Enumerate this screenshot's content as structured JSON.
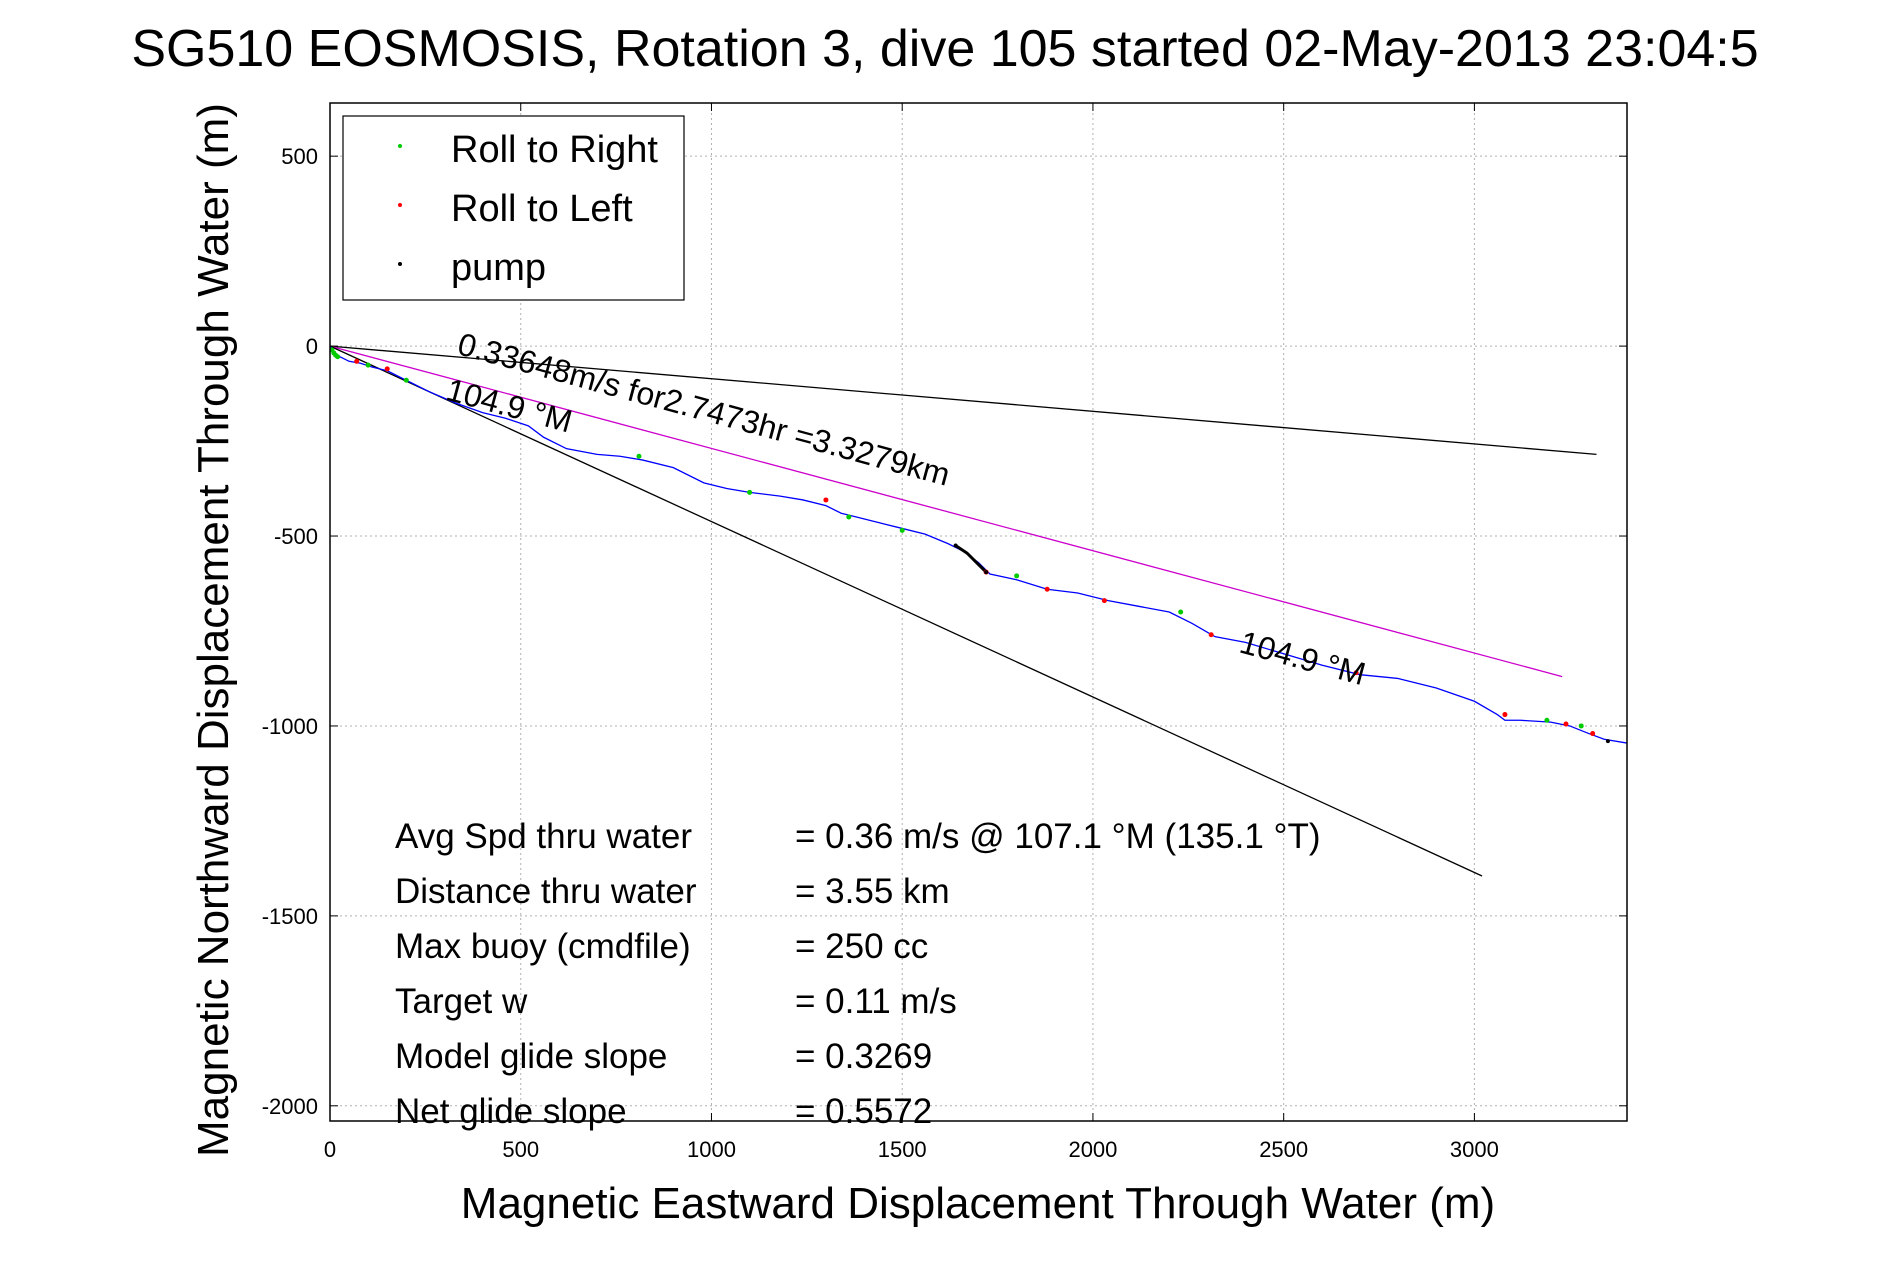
{
  "chart_data": {
    "type": "scatter",
    "title": "SG510 EOSMOSIS, Rotation 3, dive 105 started 02-May-2013 23:04:5",
    "xlabel": "Magnetic Eastward Displacement Through Water (m)",
    "ylabel": "Magnetic Northward Displacement Through Water (m)",
    "xlim": [
      0,
      3400
    ],
    "ylim": [
      -2040,
      640
    ],
    "x_ticks": [
      0,
      500,
      1000,
      1500,
      2000,
      2500,
      3000
    ],
    "y_ticks": [
      500,
      0,
      -500,
      -1000,
      -1500,
      -2000
    ],
    "x_tick_labels": [
      "0",
      "500",
      "1000",
      "1500",
      "2000",
      "2500",
      "3000"
    ],
    "y_tick_labels": [
      "500",
      "0",
      "-500",
      "-1000",
      "-1500",
      "-2000"
    ],
    "grid": true,
    "legend_position": "top-left",
    "legend": [
      {
        "label": "Roll to Right",
        "color": "#00cc00"
      },
      {
        "label": "Roll to Left",
        "color": "#ff0000"
      },
      {
        "label": "pump",
        "color": "#000000"
      }
    ],
    "track": {
      "color": "#0000ff",
      "x": [
        0,
        20,
        50,
        80,
        110,
        150,
        200,
        260,
        330,
        400,
        460,
        520,
        560,
        620,
        700,
        760,
        820,
        900,
        980,
        1040,
        1100,
        1180,
        1240,
        1300,
        1340,
        1380,
        1440,
        1500,
        1560,
        1620,
        1660,
        1700,
        1730,
        1800,
        1880,
        1960,
        2040,
        2120,
        2200,
        2260,
        2320,
        2400,
        2500,
        2600,
        2700,
        2800,
        2900,
        3000,
        3060,
        3080,
        3120,
        3200,
        3250,
        3300,
        3340,
        3400
      ],
      "y": [
        0,
        -25,
        -40,
        -45,
        -55,
        -65,
        -90,
        -120,
        -150,
        -175,
        -190,
        -210,
        -240,
        -270,
        -285,
        -290,
        -300,
        -320,
        -360,
        -375,
        -385,
        -395,
        -405,
        -420,
        -440,
        -450,
        -465,
        -480,
        -495,
        -520,
        -540,
        -570,
        -600,
        -615,
        -640,
        -650,
        -670,
        -685,
        -700,
        -730,
        -765,
        -780,
        -810,
        -840,
        -865,
        -875,
        -900,
        -935,
        -970,
        -985,
        -985,
        -990,
        -1000,
        -1020,
        -1035,
        -1045
      ]
    },
    "roll_right_points": {
      "color": "#00cc00",
      "x": [
        5,
        10,
        15,
        20,
        100,
        200,
        810,
        1100,
        1360,
        1500,
        1800,
        2230,
        3190,
        3280
      ],
      "y": [
        -10,
        -18,
        -24,
        -28,
        -50,
        -90,
        -290,
        -385,
        -450,
        -485,
        -605,
        -700,
        -985,
        -1000
      ]
    },
    "roll_left_points": {
      "color": "#ff0000",
      "x": [
        70,
        150,
        1300,
        1720,
        1880,
        2030,
        2310,
        2690,
        3080,
        3240,
        3310
      ],
      "y": [
        -40,
        -60,
        -405,
        -595,
        -640,
        -670,
        -760,
        -860,
        -970,
        -995,
        -1020
      ]
    },
    "pump_segment": {
      "color": "#000000",
      "x": [
        1640,
        1670,
        1700,
        1720
      ],
      "y": [
        -525,
        -545,
        -575,
        -595
      ]
    },
    "pump_points": {
      "color": "#000000",
      "x": [
        1640,
        1720,
        3350
      ],
      "y": [
        -525,
        -595,
        -1040
      ]
    },
    "reference_lines": [
      {
        "name": "black-top",
        "color": "#000000",
        "x": [
          0,
          3320
        ],
        "y": [
          0,
          -285
        ]
      },
      {
        "name": "magenta",
        "color": "#cc00cc",
        "x": [
          0,
          3230
        ],
        "y": [
          0,
          -870
        ]
      },
      {
        "name": "black-bottom",
        "color": "#000000",
        "x": [
          0,
          3020
        ],
        "y": [
          0,
          -1395
        ]
      }
    ],
    "annotations": [
      {
        "text": "0.33648m/s for2.7473hr =3.3279km",
        "x": 330,
        "y": -20,
        "rotation": 15.1
      },
      {
        "text": "104.9 °M",
        "x": 300,
        "y": -140,
        "rotation": 15.1
      },
      {
        "text": "104.9 °M",
        "x": 2380,
        "y": -805,
        "rotation": 15.1
      }
    ],
    "stats": [
      {
        "label": "Avg Spd thru water",
        "value": "=  0.36 m/s @ 107.1 °M (135.1 °T)"
      },
      {
        "label": "Distance thru water",
        "value": "=  3.55 km"
      },
      {
        "label": "Max buoy (cmdfile)",
        "value": "= 250 cc"
      },
      {
        "label": "Target w",
        "value": "= 0.11 m/s"
      },
      {
        "label": "Model glide slope",
        "value": "= 0.3269"
      },
      {
        "label": "Net glide slope",
        "value": "= 0.5572"
      }
    ]
  }
}
